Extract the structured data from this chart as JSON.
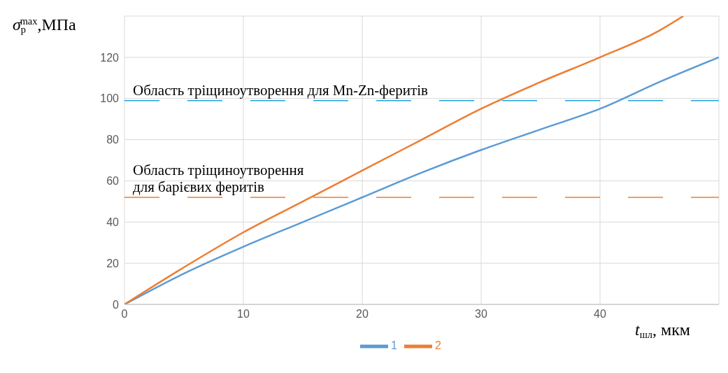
{
  "chart_data": {
    "type": "line",
    "xlabel": "t$_{шл}$, мкм",
    "ylabel": "σ$_{p}$$^{max}$,МПа",
    "xlim": [
      0,
      50
    ],
    "xticks": [
      0,
      10,
      20,
      30,
      40
    ],
    "ylim": [
      0,
      140
    ],
    "yticks": [
      0,
      20,
      40,
      60,
      80,
      100,
      120
    ],
    "grid": true,
    "legend": "bottom",
    "marker": "none",
    "line_style": "solid",
    "series": [
      {
        "name": "1",
        "color": "#5b9bd5",
        "x": [
          0,
          5,
          10,
          15,
          20,
          25,
          30,
          35,
          40,
          45,
          50
        ],
        "values": [
          0,
          15,
          28,
          40,
          52,
          64,
          75,
          85,
          95,
          108,
          120
        ]
      },
      {
        "name": "2",
        "color": "#ed7d31",
        "x": [
          0,
          5,
          10,
          15,
          20,
          25,
          30,
          35,
          40,
          45,
          47
        ],
        "values": [
          0,
          18,
          35,
          50,
          65,
          80,
          95,
          108,
          120,
          133,
          140
        ]
      }
    ],
    "ref_lines": [
      {
        "axis": "y",
        "value": 99,
        "label": "Область тріщиноутворення для Mn-Zn-феритів",
        "color": "#1fa3dc",
        "line_style": "dashed"
      },
      {
        "axis": "y",
        "value": 52,
        "label": "Область тріщиноутворення\nдля барієвих феритів",
        "color": "#ed7d31",
        "line_style": "dashed"
      }
    ]
  }
}
